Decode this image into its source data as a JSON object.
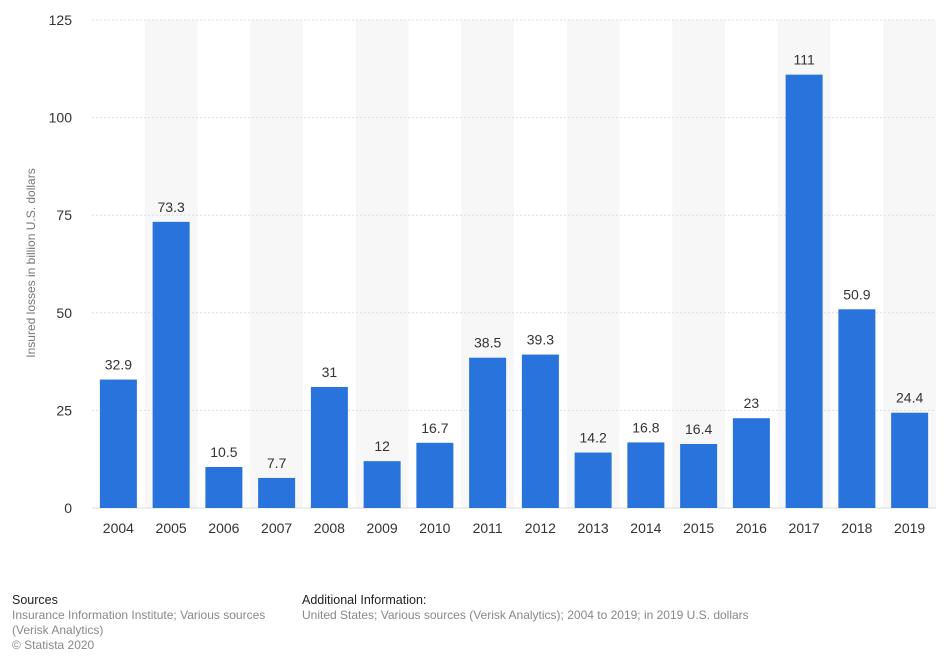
{
  "chart_data": {
    "type": "bar",
    "categories": [
      "2004",
      "2005",
      "2006",
      "2007",
      "2008",
      "2009",
      "2010",
      "2011",
      "2012",
      "2013",
      "2014",
      "2015",
      "2016",
      "2017",
      "2018",
      "2019"
    ],
    "values": [
      32.9,
      73.3,
      10.5,
      7.7,
      31,
      12,
      16.7,
      38.5,
      39.3,
      14.2,
      16.8,
      16.4,
      23,
      111,
      50.9,
      24.4
    ],
    "value_labels": [
      "32.9",
      "73.3",
      "10.5",
      "7.7",
      "31",
      "12",
      "16.7",
      "38.5",
      "39.3",
      "14.2",
      "16.8",
      "16.4",
      "23",
      "111",
      "50.9",
      "24.4"
    ],
    "ylabel": "Insured losses in billion U.S. dollars",
    "ylim": [
      0,
      125
    ],
    "yticks": [
      0,
      25,
      50,
      75,
      100,
      125
    ],
    "grid": true,
    "bar_color": "#2874dc",
    "band_color": "#f7f7f7"
  },
  "footer": {
    "sources_heading": "Sources",
    "sources_lines": [
      "Insurance Information Institute; Various sources",
      "(Verisk Analytics)",
      "© Statista 2020"
    ],
    "additional_heading": "Additional Information:",
    "additional_text": "United States; Various sources (Verisk Analytics); 2004 to 2019; in 2019 U.S. dollars"
  }
}
